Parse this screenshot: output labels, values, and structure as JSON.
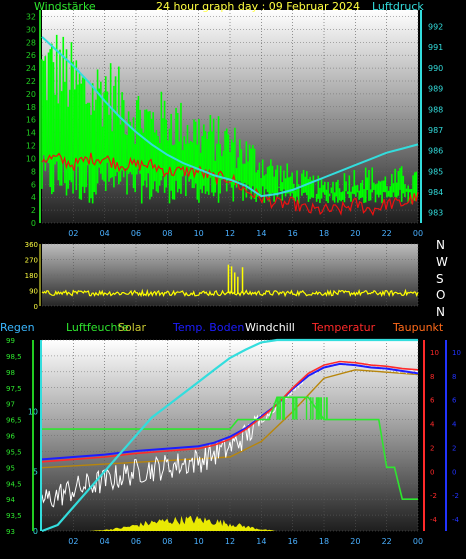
{
  "header": {
    "left_label": "Windstärke",
    "title": "24 hour graph day : 09 Februar 2024",
    "right_label": "Luftdruck"
  },
  "middle": {
    "compass": [
      "N",
      "W",
      "S",
      "O",
      "N"
    ]
  },
  "legend": [
    {
      "label": "Regen",
      "color": "#3ab7ff"
    },
    {
      "label": "Luftfeuchte",
      "color": "#2ee62e"
    },
    {
      "label": "Solar",
      "color": "#c8c832"
    },
    {
      "label": "Temp. Boden",
      "color": "#1d1dff"
    },
    {
      "label": "Windchill",
      "color": "#ffffff"
    },
    {
      "label": "Temperatur",
      "color": "#ff2a2a"
    },
    {
      "label": "Taupunkt",
      "color": "#ff6a1a"
    }
  ],
  "colors": {
    "wind_gust": "#00ff00",
    "wind_avg": "#33cc33",
    "wind_dir": "#ffff00",
    "pressure": "#33dddd",
    "wind_red": "#ee1111",
    "humidity": "#2ee62e",
    "rain": "#33dddd",
    "solar": "#ffff00",
    "temp": "#ff2a2a",
    "temp_ground": "#1d1dff",
    "windchill": "#ffffff",
    "dewpoint": "#b8860b",
    "axis_green": "#22cc22",
    "axis_red": "#ff2a2a",
    "axis_blue": "#2233ff",
    "axis_cyan": "#33dddd"
  },
  "chart_data": [
    {
      "type": "line",
      "name": "top",
      "x_ticks": [
        "02",
        "04",
        "06",
        "08",
        "10",
        "12",
        "14",
        "16",
        "18",
        "20",
        "22",
        "00"
      ],
      "y_left_ticks": [
        "0",
        "2",
        "4",
        "6",
        "8",
        "10",
        "12",
        "14",
        "16",
        "18",
        "20",
        "22",
        "24",
        "26",
        "28",
        "30",
        "32"
      ],
      "y_left_range": [
        0,
        33
      ],
      "y_right_ticks": [
        "983",
        "984",
        "985",
        "986",
        "987",
        "988",
        "989",
        "990",
        "991",
        "992"
      ],
      "y_right_range": [
        982.5,
        992.8
      ],
      "pressure": {
        "x": [
          0,
          1,
          2,
          3,
          4,
          5,
          6,
          7,
          8,
          9,
          10,
          11,
          12,
          13,
          14,
          15,
          16,
          17,
          18,
          19,
          20,
          21,
          22,
          23,
          24
        ],
        "values": [
          991.5,
          990.8,
          990.1,
          989.3,
          988.4,
          987.6,
          986.9,
          986.3,
          985.8,
          985.4,
          985.1,
          984.8,
          984.6,
          984.3,
          983.8,
          983.9,
          984.1,
          984.4,
          984.7,
          985.0,
          985.3,
          985.6,
          985.9,
          986.1,
          986.3
        ]
      },
      "wind_gust_envelope": {
        "x": [
          0,
          1,
          2,
          3,
          4,
          5,
          6,
          7,
          8,
          9,
          10,
          11,
          12,
          13,
          14,
          15,
          16,
          17,
          18,
          19,
          20,
          21,
          22,
          23,
          24
        ],
        "values": [
          30,
          31,
          28,
          25,
          27,
          24,
          22,
          20,
          21,
          19,
          18,
          17,
          16,
          14,
          12,
          10,
          9,
          8,
          7,
          8,
          9,
          9,
          8,
          9,
          8
        ]
      },
      "wind_red": {
        "x": [
          0,
          1,
          2,
          3,
          4,
          5,
          6,
          7,
          8,
          9,
          10,
          11,
          12,
          13,
          14,
          15,
          16,
          17,
          18,
          19,
          20,
          21,
          22,
          23,
          24
        ],
        "values": [
          10,
          10,
          9,
          10,
          10,
          9,
          9,
          9,
          8,
          8,
          8,
          7,
          7,
          5,
          4,
          3,
          3,
          2,
          2,
          2,
          3,
          2,
          3,
          3,
          4
        ]
      }
    },
    {
      "type": "scatter",
      "name": "wind-direction",
      "x_ticks": [
        "02",
        "04",
        "06",
        "08",
        "10",
        "12",
        "14",
        "16",
        "18",
        "20",
        "22",
        "00"
      ],
      "y_ticks": [
        "0",
        "90",
        "180",
        "270",
        "360"
      ],
      "y_range": [
        0,
        360
      ],
      "baseline_deg": 75,
      "spikes": {
        "x": [
          11.9,
          12.1,
          12.3,
          12.5,
          12.8
        ],
        "values": [
          240,
          230,
          195,
          170,
          225
        ]
      }
    },
    {
      "type": "line",
      "name": "bottom",
      "x_ticks": [
        "02",
        "04",
        "06",
        "08",
        "10",
        "12",
        "14",
        "16",
        "18",
        "20",
        "22",
        "00"
      ],
      "y_humidity_ticks": [
        "93",
        "93,5",
        "94",
        "94,5",
        "95",
        "95,5",
        "96",
        "96,5",
        "97",
        "97,5",
        "98",
        "98,5",
        "99"
      ],
      "y_humidity_range": [
        93,
        99
      ],
      "y_rain_ticks": [
        "0",
        "5",
        "10"
      ],
      "y_rain_range": [
        0,
        16
      ],
      "y_temp_red_ticks": [
        "-4",
        "-2",
        "0",
        "2",
        "4",
        "6",
        "8",
        "10"
      ],
      "y_temp_blue_ticks": [
        "-4",
        "-2",
        "0",
        "2",
        "4",
        "6",
        "8",
        "10"
      ],
      "y_temp_range": [
        -5,
        11
      ],
      "humidity": {
        "x": [
          0,
          12,
          12.5,
          14.5,
          15,
          17,
          18,
          19,
          20,
          21,
          21.5,
          22,
          22.5,
          23,
          23.5,
          24
        ],
        "values": [
          96.2,
          96.2,
          96.5,
          96.5,
          97.2,
          97.2,
          96.5,
          96.5,
          96.5,
          96.5,
          96.5,
          95.0,
          95.0,
          94.0,
          94.0,
          94.0
        ]
      },
      "rain": {
        "x": [
          0,
          1,
          2,
          3,
          4,
          5,
          6,
          7,
          8,
          9,
          10,
          11,
          12,
          13,
          13.5,
          14,
          15,
          24
        ],
        "values": [
          0,
          0.5,
          2,
          3.5,
          5,
          6.5,
          8,
          9.5,
          10.5,
          11.5,
          12.5,
          13.5,
          14.5,
          15.2,
          15.5,
          15.8,
          16,
          16
        ]
      },
      "temperature": {
        "x": [
          0,
          2,
          4,
          6,
          8,
          10,
          11,
          12,
          13,
          14,
          15,
          16,
          17,
          18,
          19,
          20,
          21,
          22,
          23,
          24
        ],
        "values": [
          0.8,
          1.0,
          1.2,
          1.5,
          1.7,
          1.9,
          2.2,
          2.7,
          3.5,
          4.5,
          5.6,
          7.0,
          8.2,
          8.9,
          9.2,
          9.1,
          8.9,
          8.8,
          8.6,
          8.5
        ]
      },
      "temp_ground": {
        "x": [
          0,
          2,
          4,
          6,
          8,
          10,
          11,
          12,
          13,
          14,
          15,
          16,
          17,
          18,
          19,
          20,
          21,
          22,
          23,
          24
        ],
        "values": [
          1.0,
          1.2,
          1.4,
          1.7,
          1.9,
          2.1,
          2.4,
          2.9,
          3.6,
          4.6,
          5.6,
          6.9,
          8.0,
          8.7,
          9.0,
          8.9,
          8.7,
          8.6,
          8.4,
          8.2
        ]
      },
      "windchill": {
        "x": [
          0,
          2,
          4,
          6,
          8,
          10,
          11,
          12,
          13,
          14,
          15,
          16,
          17,
          18,
          19,
          20,
          21,
          22,
          23,
          24
        ],
        "values": [
          -2.5,
          -1.5,
          -0.8,
          0.0,
          0.4,
          0.9,
          1.5,
          2.0,
          3.0,
          4.2,
          5.4,
          6.8,
          8.0,
          8.8,
          9.1,
          9.0,
          8.8,
          8.6,
          8.4,
          8.3
        ]
      },
      "dewpoint": {
        "x": [
          0,
          4,
          8,
          12,
          14,
          16,
          18,
          20,
          22,
          24
        ],
        "values": [
          0.3,
          0.6,
          0.9,
          1.2,
          2.5,
          5.0,
          7.8,
          8.5,
          8.3,
          8.1
        ]
      },
      "solar": {
        "x": [
          0,
          1,
          2,
          3,
          4,
          5,
          6,
          7,
          8,
          9,
          10,
          11,
          12,
          13,
          14,
          15,
          16,
          17,
          24
        ],
        "values": [
          0,
          0,
          0,
          0,
          0.2,
          0.5,
          1.0,
          1.5,
          1.8,
          2.0,
          2.0,
          1.7,
          1.3,
          0.8,
          0.3,
          0,
          0,
          0,
          0
        ]
      }
    }
  ]
}
